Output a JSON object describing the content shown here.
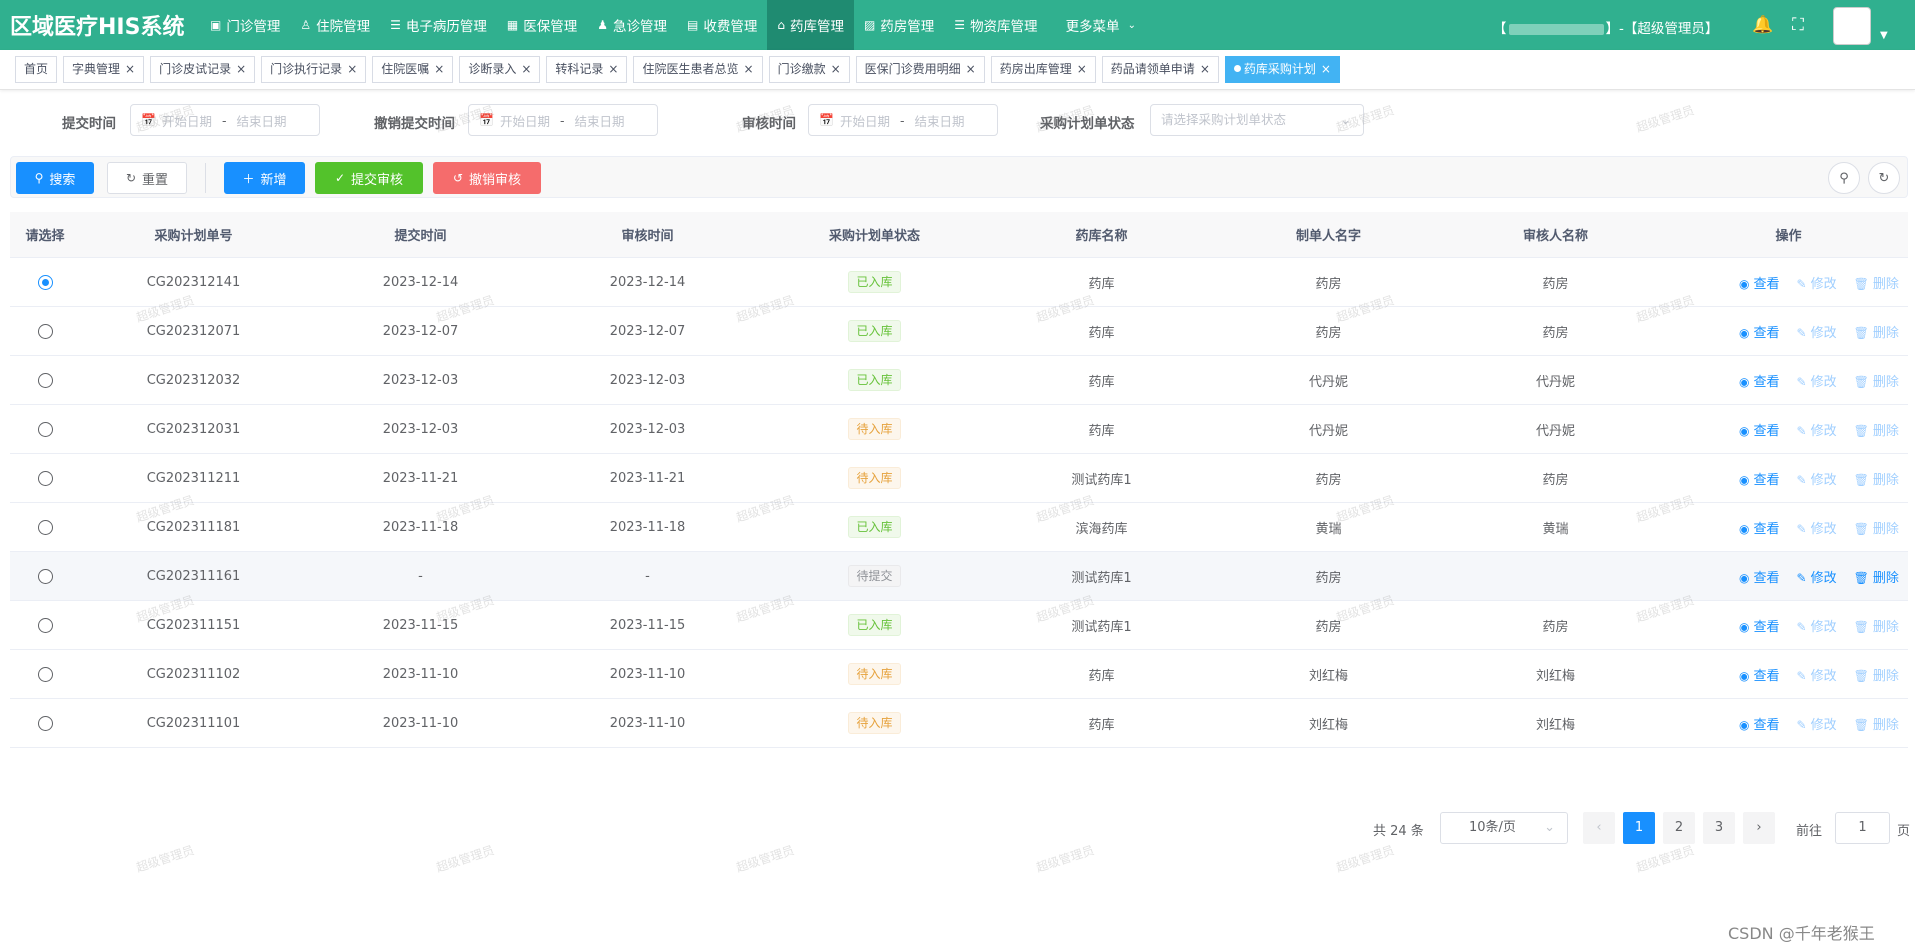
{
  "header": {
    "brand": "区域医疗HIS系统",
    "nav": [
      {
        "label": "门诊管理",
        "icon": "clinic-icon"
      },
      {
        "label": "住院管理",
        "icon": "inpatient-icon"
      },
      {
        "label": "电子病历管理",
        "icon": "emr-icon"
      },
      {
        "label": "医保管理",
        "icon": "insurance-icon"
      },
      {
        "label": "急诊管理",
        "icon": "emergency-icon"
      },
      {
        "label": "收费管理",
        "icon": "billing-icon"
      },
      {
        "label": "药库管理",
        "icon": "warehouse-icon",
        "active": true
      },
      {
        "label": "药房管理",
        "icon": "pharmacy-icon"
      },
      {
        "label": "物资库管理",
        "icon": "list-icon"
      }
    ],
    "more_menu": "更多菜单",
    "user_prefix": "【",
    "user_suffix": "】-【超级管理员】"
  },
  "tags": [
    {
      "label": "首页",
      "closable": false
    },
    {
      "label": "字典管理",
      "closable": true
    },
    {
      "label": "门诊皮试记录",
      "closable": true
    },
    {
      "label": "门诊执行记录",
      "closable": true
    },
    {
      "label": "住院医嘱",
      "closable": true
    },
    {
      "label": "诊断录入",
      "closable": true
    },
    {
      "label": "转科记录",
      "closable": true
    },
    {
      "label": "住院医生患者总览",
      "closable": true
    },
    {
      "label": "门诊缴款",
      "closable": true
    },
    {
      "label": "医保门诊费用明细",
      "closable": true
    },
    {
      "label": "药房出库管理",
      "closable": true
    },
    {
      "label": "药品请领单申请",
      "closable": true
    },
    {
      "label": "药库采购计划",
      "closable": true,
      "active": true
    }
  ],
  "filters": {
    "submit_time": "提交时间",
    "cancel_submit_time": "撤销提交时间",
    "audit_time": "审核时间",
    "plan_status": "采购计划单状态",
    "start_placeholder": "开始日期",
    "end_placeholder": "结束日期",
    "range_sep": "-",
    "status_placeholder": "请选择采购计划单状态"
  },
  "toolbar": {
    "search": "搜索",
    "reset": "重置",
    "add": "新增",
    "submit_audit": "提交审核",
    "cancel_audit": "撤销审核"
  },
  "table": {
    "headers": [
      "请选择",
      "采购计划单号",
      "提交时间",
      "审核时间",
      "采购计划单状态",
      "药库名称",
      "制单人名字",
      "审核人名称",
      "操作"
    ],
    "ops": {
      "view": "查看",
      "edit": "修改",
      "delete": "删除"
    },
    "rows": [
      {
        "no": "CG202312141",
        "submit": "2023-12-14",
        "audit": "2023-12-14",
        "status": "已入库",
        "kind": "in",
        "store": "药库",
        "maker": "药房",
        "auditor": "药房",
        "checked": true
      },
      {
        "no": "CG202312071",
        "submit": "2023-12-07",
        "audit": "2023-12-07",
        "status": "已入库",
        "kind": "in",
        "store": "药库",
        "maker": "药房",
        "auditor": "药房"
      },
      {
        "no": "CG202312032",
        "submit": "2023-12-03",
        "audit": "2023-12-03",
        "status": "已入库",
        "kind": "in",
        "store": "药库",
        "maker": "代丹妮",
        "auditor": "代丹妮"
      },
      {
        "no": "CG202312031",
        "submit": "2023-12-03",
        "audit": "2023-12-03",
        "status": "待入库",
        "kind": "wait",
        "store": "药库",
        "maker": "代丹妮",
        "auditor": "代丹妮"
      },
      {
        "no": "CG202311211",
        "submit": "2023-11-21",
        "audit": "2023-11-21",
        "status": "待入库",
        "kind": "wait",
        "store": "测试药库1",
        "maker": "药房",
        "auditor": "药房"
      },
      {
        "no": "CG202311181",
        "submit": "2023-11-18",
        "audit": "2023-11-18",
        "status": "已入库",
        "kind": "in",
        "store": "滨海药库",
        "maker": "黄瑞",
        "auditor": "黄瑞"
      },
      {
        "no": "CG202311161",
        "submit": "-",
        "audit": "-",
        "status": "待提交",
        "kind": "draft",
        "store": "测试药库1",
        "maker": "药房",
        "auditor": "",
        "editable": true,
        "hover": true
      },
      {
        "no": "CG202311151",
        "submit": "2023-11-15",
        "audit": "2023-11-15",
        "status": "已入库",
        "kind": "in",
        "store": "测试药库1",
        "maker": "药房",
        "auditor": "药房"
      },
      {
        "no": "CG202311102",
        "submit": "2023-11-10",
        "audit": "2023-11-10",
        "status": "待入库",
        "kind": "wait",
        "store": "药库",
        "maker": "刘红梅",
        "auditor": "刘红梅"
      },
      {
        "no": "CG202311101",
        "submit": "2023-11-10",
        "audit": "2023-11-10",
        "status": "待入库",
        "kind": "wait",
        "store": "药库",
        "maker": "刘红梅",
        "auditor": "刘红梅"
      }
    ]
  },
  "pagination": {
    "total": "共 24 条",
    "page_size": "10条/页",
    "pages": [
      "1",
      "2",
      "3"
    ],
    "current": "1",
    "goto_label": "前往",
    "goto_value": "1",
    "unit": "页"
  },
  "watermark": "超级管理员",
  "footer_credit": "CSDN @千年老猴王"
}
